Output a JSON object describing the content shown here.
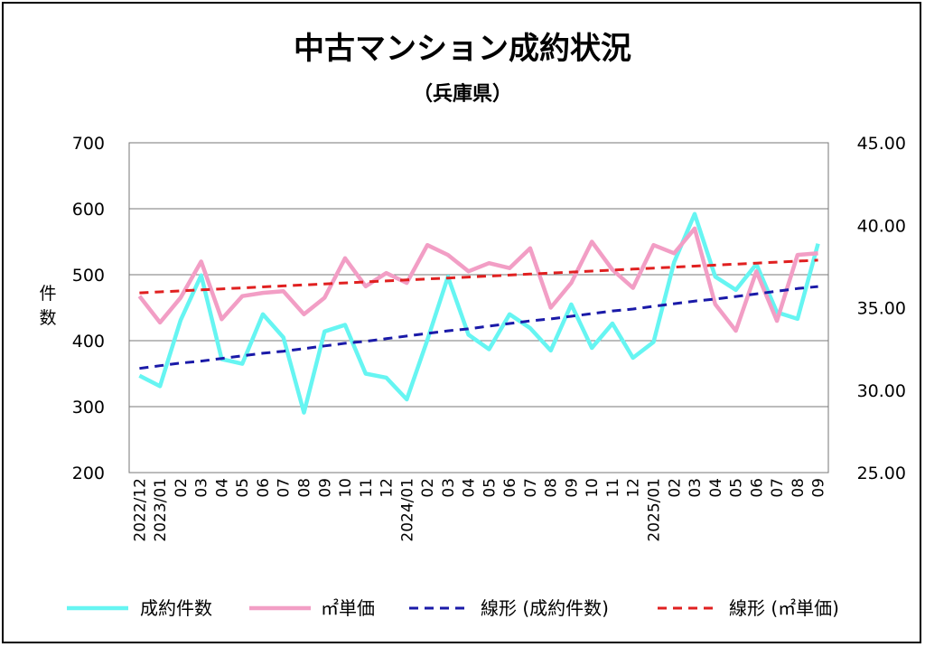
{
  "chart_data": {
    "type": "line",
    "title": "中古マンション成約状況",
    "subtitle": "（兵庫県）",
    "ylabel_left": "件数",
    "y_left_ticks": [
      "700",
      "600",
      "500",
      "400",
      "300",
      "200"
    ],
    "y_right_ticks": [
      "45.00",
      "40.00",
      "35.00",
      "30.00",
      "25.00"
    ],
    "y_left_lim": [
      200,
      700
    ],
    "y_right_lim": [
      25,
      45
    ],
    "x": [
      "2022/12",
      "2023/01",
      "02",
      "03",
      "04",
      "05",
      "06",
      "07",
      "08",
      "09",
      "10",
      "11",
      "12",
      "2024/01",
      "02",
      "03",
      "04",
      "05",
      "06",
      "07",
      "08",
      "09",
      "10",
      "11",
      "12",
      "2025/01",
      "02",
      "03",
      "04",
      "05",
      "06",
      "07",
      "08",
      "09"
    ],
    "series": [
      {
        "name": "成約件数",
        "axis": "left",
        "color": "#66f5f2",
        "style": "solid",
        "values": [
          347,
          331,
          431,
          499,
          372,
          365,
          440,
          405,
          291,
          414,
          424,
          350,
          344,
          311,
          401,
          497,
          409,
          387,
          440,
          419,
          385,
          455,
          389,
          426,
          374,
          398,
          519,
          592,
          497,
          477,
          516,
          443,
          433,
          547
        ]
      },
      {
        "name": "㎡単価",
        "axis": "right",
        "color": "#f29ec5",
        "style": "solid",
        "values": [
          35.7,
          34.1,
          35.6,
          37.8,
          34.3,
          35.7,
          35.9,
          36.0,
          34.6,
          35.6,
          38.0,
          36.3,
          37.1,
          36.5,
          38.8,
          38.2,
          37.2,
          37.7,
          37.4,
          38.6,
          35.0,
          36.5,
          39.0,
          37.3,
          36.2,
          38.8,
          38.3,
          39.8,
          35.2,
          33.6,
          37.2,
          34.2,
          38.2,
          38.3
        ]
      },
      {
        "name": "線形 (成約件数)",
        "axis": "left",
        "color": "#1a1aa8",
        "style": "dashed",
        "values": [
          358,
          362,
          366,
          369,
          373,
          377,
          381,
          384,
          388,
          392,
          396,
          399,
          403,
          407,
          411,
          415,
          418,
          422,
          426,
          430,
          433,
          437,
          441,
          445,
          448,
          452,
          456,
          460,
          463,
          467,
          471,
          475,
          479,
          482
        ]
      },
      {
        "name": "線形 (㎡単価)",
        "axis": "right",
        "color": "#e02020",
        "style": "dashed",
        "values": [
          35.9,
          35.96,
          36.02,
          36.08,
          36.14,
          36.2,
          36.26,
          36.32,
          36.38,
          36.44,
          36.5,
          36.56,
          36.62,
          36.68,
          36.74,
          36.8,
          36.86,
          36.92,
          36.98,
          37.04,
          37.1,
          37.16,
          37.22,
          37.28,
          37.34,
          37.4,
          37.46,
          37.52,
          37.58,
          37.64,
          37.7,
          37.76,
          37.82,
          37.88
        ]
      }
    ],
    "grid": true,
    "legend": "bottom"
  }
}
